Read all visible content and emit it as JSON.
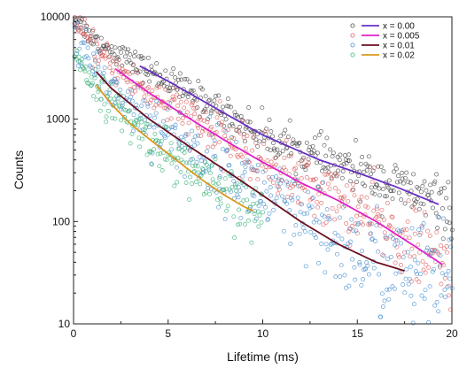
{
  "chart_data": {
    "type": "scatter",
    "title": "",
    "xlabel": "Lifetime (ms)",
    "ylabel": "Counts",
    "xlim": [
      0,
      20
    ],
    "ylim": [
      10,
      10000
    ],
    "yscale": "log",
    "grid": false,
    "legend_position": "top-right",
    "x_ticks": [
      "0",
      "5",
      "10",
      "15",
      "20"
    ],
    "y_ticks": [
      "10",
      "100",
      "1000",
      "10000"
    ],
    "series": [
      {
        "name": "x = 0.00",
        "scatter_color": "#4a4a4a",
        "fit_color": "#6a2fc4",
        "noise": 0.05,
        "scatter_x_range": [
          0.05,
          20
        ],
        "fit_x_range": [
          3.5,
          19.3
        ],
        "points": [
          [
            0.1,
            9700
          ],
          [
            1,
            6200
          ],
          [
            2,
            4700
          ],
          [
            3,
            3700
          ],
          [
            5,
            2350
          ],
          [
            7,
            1450
          ],
          [
            10,
            700
          ],
          [
            13,
            400
          ],
          [
            15,
            300
          ],
          [
            17,
            220
          ],
          [
            20,
            130
          ]
        ]
      },
      {
        "name": "x = 0.005",
        "scatter_color": "#e06060",
        "fit_color": "#e020c8",
        "noise": 0.07,
        "scatter_x_range": [
          0.05,
          19.9
        ],
        "fit_x_range": [
          2.2,
          19.5
        ],
        "points": [
          [
            0.1,
            8500
          ],
          [
            1,
            5000
          ],
          [
            2,
            3300
          ],
          [
            4,
            1800
          ],
          [
            6,
            1050
          ],
          [
            8,
            620
          ],
          [
            10,
            380
          ],
          [
            12,
            240
          ],
          [
            14,
            160
          ],
          [
            16,
            100
          ],
          [
            18,
            58
          ],
          [
            19.5,
            38
          ]
        ]
      },
      {
        "name": "x = 0.01",
        "scatter_color": "#4a90d0",
        "fit_color": "#6a0f1f",
        "noise": 0.11,
        "scatter_x_range": [
          0.05,
          20
        ],
        "fit_x_range": [
          1.2,
          17.5
        ],
        "points": [
          [
            0.1,
            6500
          ],
          [
            0.5,
            4200
          ],
          [
            1,
            3200
          ],
          [
            2,
            2000
          ],
          [
            4,
            1000
          ],
          [
            6,
            560
          ],
          [
            8,
            320
          ],
          [
            10,
            180
          ],
          [
            12,
            100
          ],
          [
            14,
            60
          ],
          [
            16,
            40
          ],
          [
            17.5,
            33
          ],
          [
            20,
            22
          ]
        ]
      },
      {
        "name": "x = 0.02",
        "scatter_color": "#3cb478",
        "fit_color": "#d89a20",
        "noise": 0.08,
        "scatter_x_range": [
          0.05,
          10
        ],
        "fit_x_range": [
          1.2,
          9.5
        ],
        "points": [
          [
            0.1,
            5000
          ],
          [
            0.5,
            3300
          ],
          [
            1,
            2400
          ],
          [
            2,
            1400
          ],
          [
            3,
            900
          ],
          [
            4,
            640
          ],
          [
            5,
            460
          ],
          [
            6,
            330
          ],
          [
            7,
            240
          ],
          [
            8,
            180
          ],
          [
            9,
            140
          ],
          [
            10,
            115
          ]
        ]
      }
    ]
  }
}
